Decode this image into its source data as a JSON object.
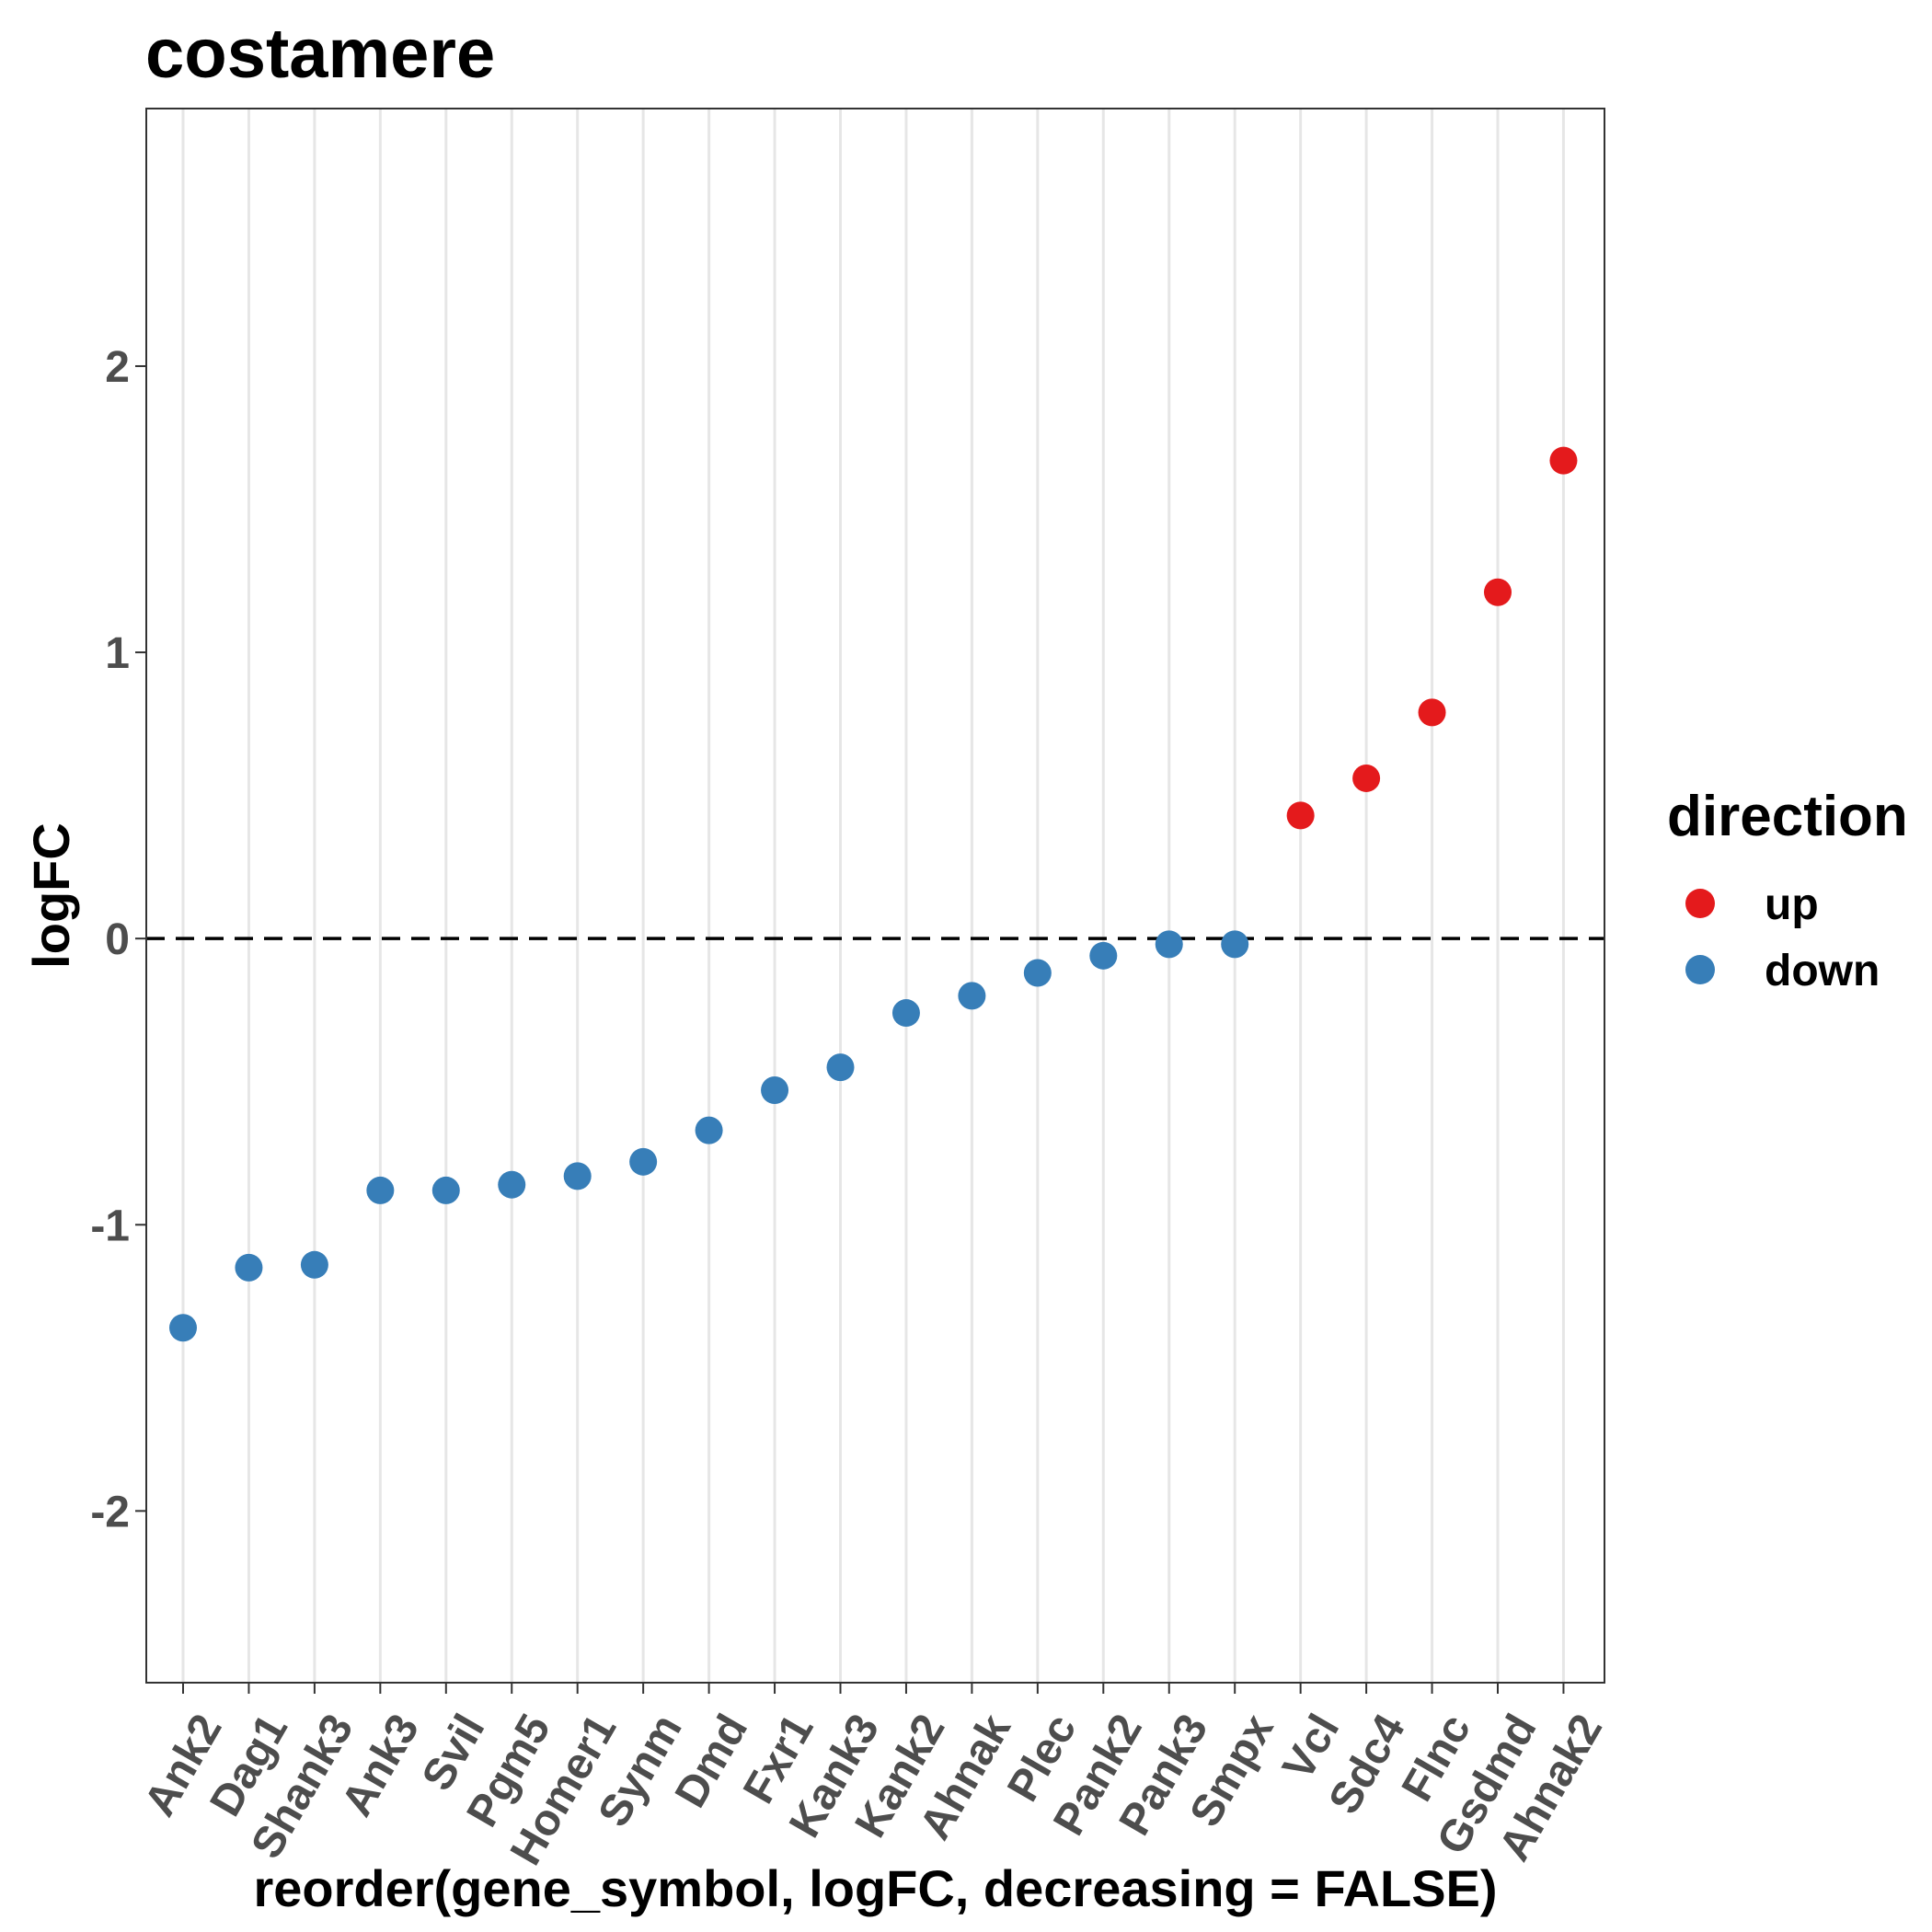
{
  "chart_data": {
    "type": "scatter",
    "title": "costamere",
    "xlabel": "reorder(gene_symbol, logFC, decreasing = FALSE)",
    "ylabel": "logFC",
    "ylim": [
      -2.6,
      2.9
    ],
    "yticks": [
      "-2",
      "-1",
      "0",
      "1",
      "2"
    ],
    "ytick_values": [
      -2,
      -1,
      0,
      1,
      2
    ],
    "reference_line": {
      "y": 0,
      "style": "dashed"
    },
    "grid": "vertical-major",
    "legend": {
      "title": "direction",
      "placement": "right",
      "entries": [
        {
          "label": "up",
          "color": "#e41a1c"
        },
        {
          "label": "down",
          "color": "#377eb8"
        }
      ]
    },
    "categories": [
      "Ank2",
      "Dag1",
      "Shank3",
      "Ank3",
      "Svil",
      "Pgm5",
      "Homer1",
      "Synm",
      "Dmd",
      "Fxr1",
      "Kank3",
      "Kank2",
      "Ahnak",
      "Plec",
      "Pank2",
      "Pank3",
      "Smpx",
      "Vcl",
      "Sdc4",
      "Flnc",
      "Gsdmd",
      "Ahnak2"
    ],
    "values": [
      -1.36,
      -1.15,
      -1.14,
      -0.88,
      -0.88,
      -0.86,
      -0.83,
      -0.78,
      -0.67,
      -0.53,
      -0.45,
      -0.26,
      -0.2,
      -0.12,
      -0.06,
      -0.02,
      -0.02,
      0.43,
      0.56,
      0.79,
      1.21,
      1.67
    ],
    "direction": [
      "down",
      "down",
      "down",
      "down",
      "down",
      "down",
      "down",
      "down",
      "down",
      "down",
      "down",
      "down",
      "down",
      "down",
      "down",
      "down",
      "down",
      "up",
      "up",
      "up",
      "up",
      "up"
    ]
  }
}
